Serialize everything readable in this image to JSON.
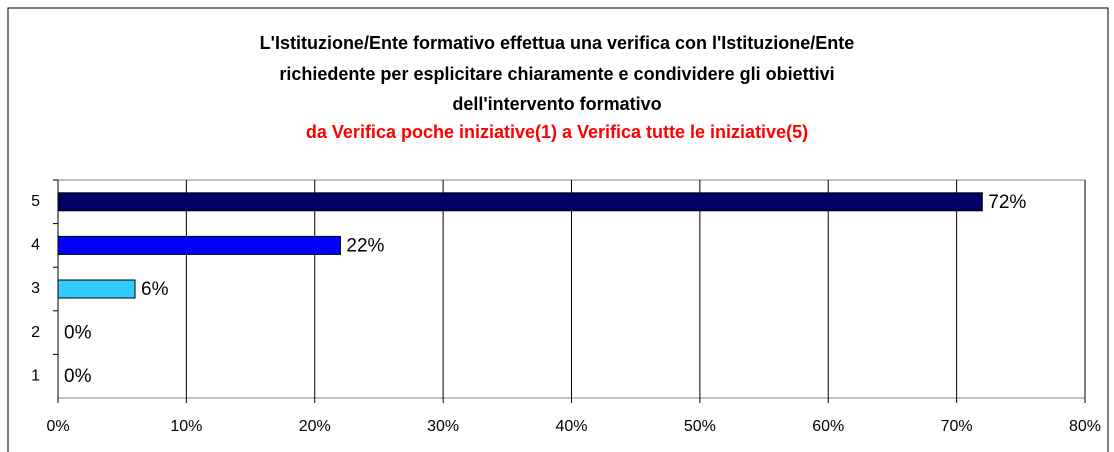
{
  "chart_data": {
    "type": "barh",
    "title": [
      "L'Istituzione/Ente formativo effettua una verifica con l'Istituzione/Ente",
      "richiedente per esplicitare chiaramente e condividere gli obiettivi",
      "dell'intervento formativo"
    ],
    "subtitle": "da Verifica poche iniziative(1) a Verifica tutte le iniziative(5)",
    "categories": [
      "5",
      "4",
      "3",
      "2",
      "1"
    ],
    "values": [
      72,
      22,
      6,
      0,
      0
    ],
    "value_labels": [
      "72%",
      "22%",
      "6%",
      "0%",
      "0%"
    ],
    "colors": [
      "#000066",
      "#0000ff",
      "#33ccff",
      "#9999ff",
      "#9999ff"
    ],
    "xlim": [
      0,
      80
    ],
    "xticks": [
      {
        "value": 0,
        "label": "0%"
      },
      {
        "value": 10,
        "label": "10%"
      },
      {
        "value": 20,
        "label": "20%"
      },
      {
        "value": 30,
        "label": "30%"
      },
      {
        "value": 40,
        "label": "40%"
      },
      {
        "value": 50,
        "label": "50%"
      },
      {
        "value": 60,
        "label": "60%"
      },
      {
        "value": 70,
        "label": "70%"
      },
      {
        "value": 80,
        "label": "80%"
      }
    ],
    "grid": true
  }
}
